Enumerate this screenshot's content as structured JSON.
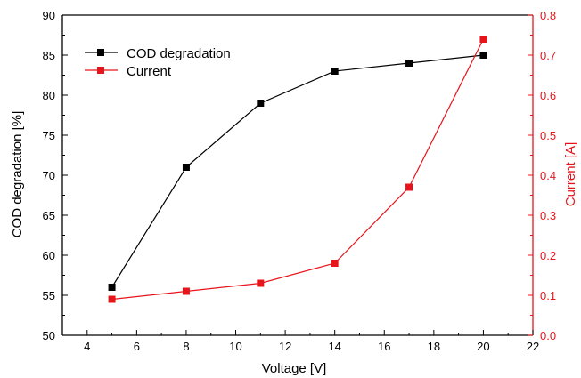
{
  "chart_data": {
    "type": "line",
    "xlabel": "Voltage [V]",
    "xlim": [
      3,
      22
    ],
    "xticks": [
      4,
      6,
      8,
      10,
      12,
      14,
      16,
      18,
      20,
      22
    ],
    "y_left": {
      "label": "COD degradation [%]",
      "lim": [
        50,
        90
      ],
      "ticks": [
        50,
        55,
        60,
        65,
        70,
        75,
        80,
        85,
        90
      ]
    },
    "y_right": {
      "label": "Current [A]",
      "lim": [
        0.0,
        0.8
      ],
      "ticks": [
        "0.0",
        "0.1",
        "0.2",
        "0.3",
        "0.4",
        "0.5",
        "0.6",
        "0.7",
        "0.8"
      ]
    },
    "legend_position": "top-left",
    "series": [
      {
        "name": "COD degradation",
        "axis": "left",
        "color": "#000000",
        "marker": "square",
        "x": [
          5,
          8,
          11,
          14,
          17,
          20
        ],
        "y": [
          56,
          71,
          79,
          83,
          84,
          85
        ]
      },
      {
        "name": "Current",
        "axis": "right",
        "color": "#e8141b",
        "marker": "square",
        "x": [
          5,
          8,
          11,
          14,
          17,
          20
        ],
        "y": [
          0.09,
          0.11,
          0.13,
          0.18,
          0.37,
          0.74
        ]
      }
    ],
    "grid": false
  }
}
